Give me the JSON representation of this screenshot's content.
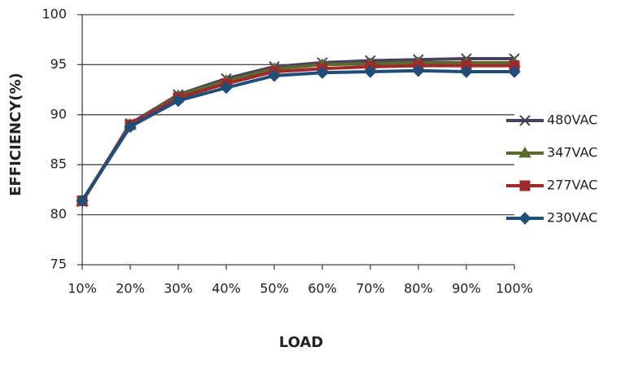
{
  "chart_data": {
    "type": "line",
    "x_label": "LOAD",
    "y_label": "EFFICIENCY(%)",
    "categories": [
      "10%",
      "20%",
      "30%",
      "40%",
      "50%",
      "60%",
      "70%",
      "80%",
      "90%",
      "100%"
    ],
    "series": [
      {
        "name": "480VAC",
        "color": "#4a3f5c",
        "marker": "x",
        "values": [
          81.3,
          89.1,
          92.0,
          93.6,
          94.8,
          95.2,
          95.4,
          95.5,
          95.6,
          95.6
        ]
      },
      {
        "name": "347VAC",
        "color": "#5b6b2e",
        "marker": "triangle",
        "values": [
          81.3,
          89.0,
          91.9,
          93.4,
          94.6,
          95.0,
          95.1,
          95.2,
          95.2,
          95.2
        ]
      },
      {
        "name": "277VAC",
        "color": "#9e2a2b",
        "marker": "square",
        "values": [
          81.4,
          89.0,
          91.7,
          93.1,
          94.3,
          94.6,
          94.8,
          94.9,
          94.9,
          94.9
        ]
      },
      {
        "name": "230VAC",
        "color": "#1f4e79",
        "marker": "diamond",
        "values": [
          81.4,
          88.8,
          91.4,
          92.7,
          93.9,
          94.2,
          94.3,
          94.4,
          94.3,
          94.3
        ]
      }
    ],
    "ylim": [
      75,
      100
    ],
    "yticks": [
      75,
      80,
      85,
      90,
      95,
      100
    ],
    "grid": true,
    "legend": "right"
  }
}
